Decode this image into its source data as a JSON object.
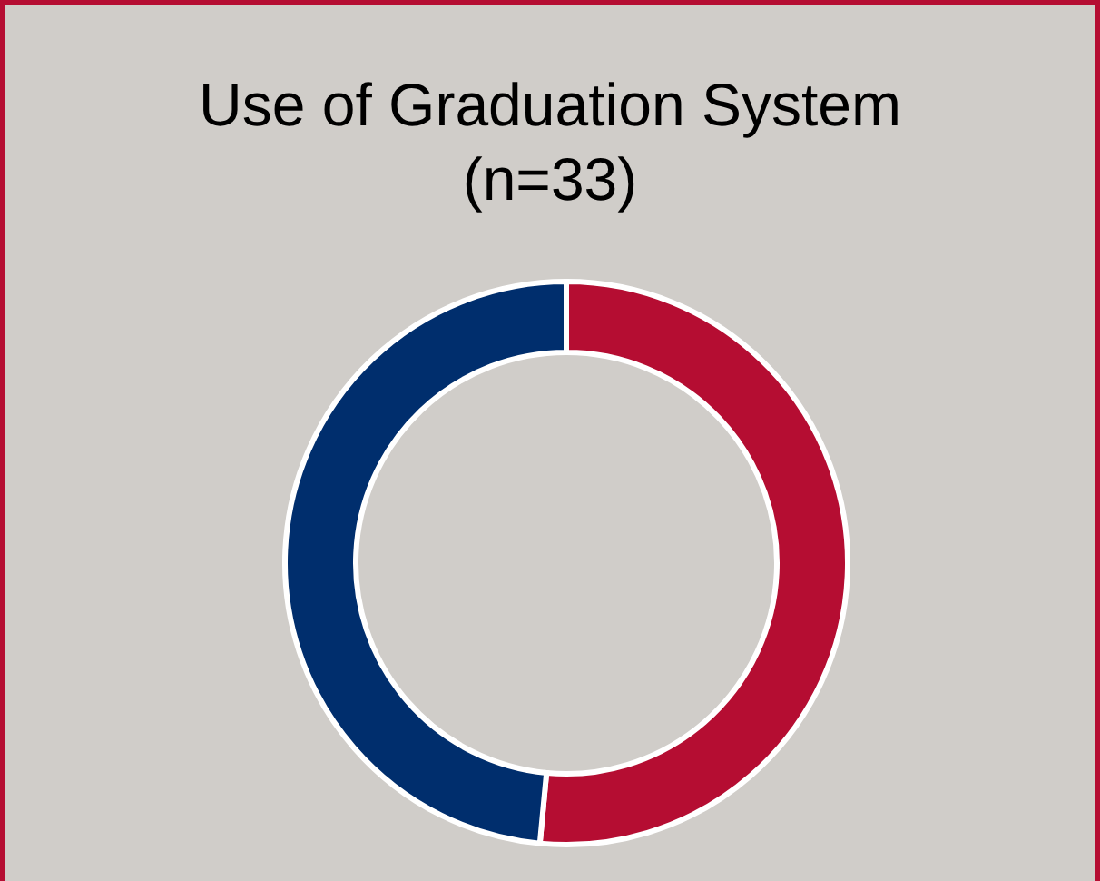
{
  "chart_data": {
    "type": "donut",
    "title": "Use of Graduation System",
    "subtitle": "(n=33)",
    "categories": [
      null,
      null
    ],
    "values": [
      51.5,
      48.5
    ],
    "colors": [
      "#b50d32",
      "#002e6d"
    ],
    "legend": false
  }
}
